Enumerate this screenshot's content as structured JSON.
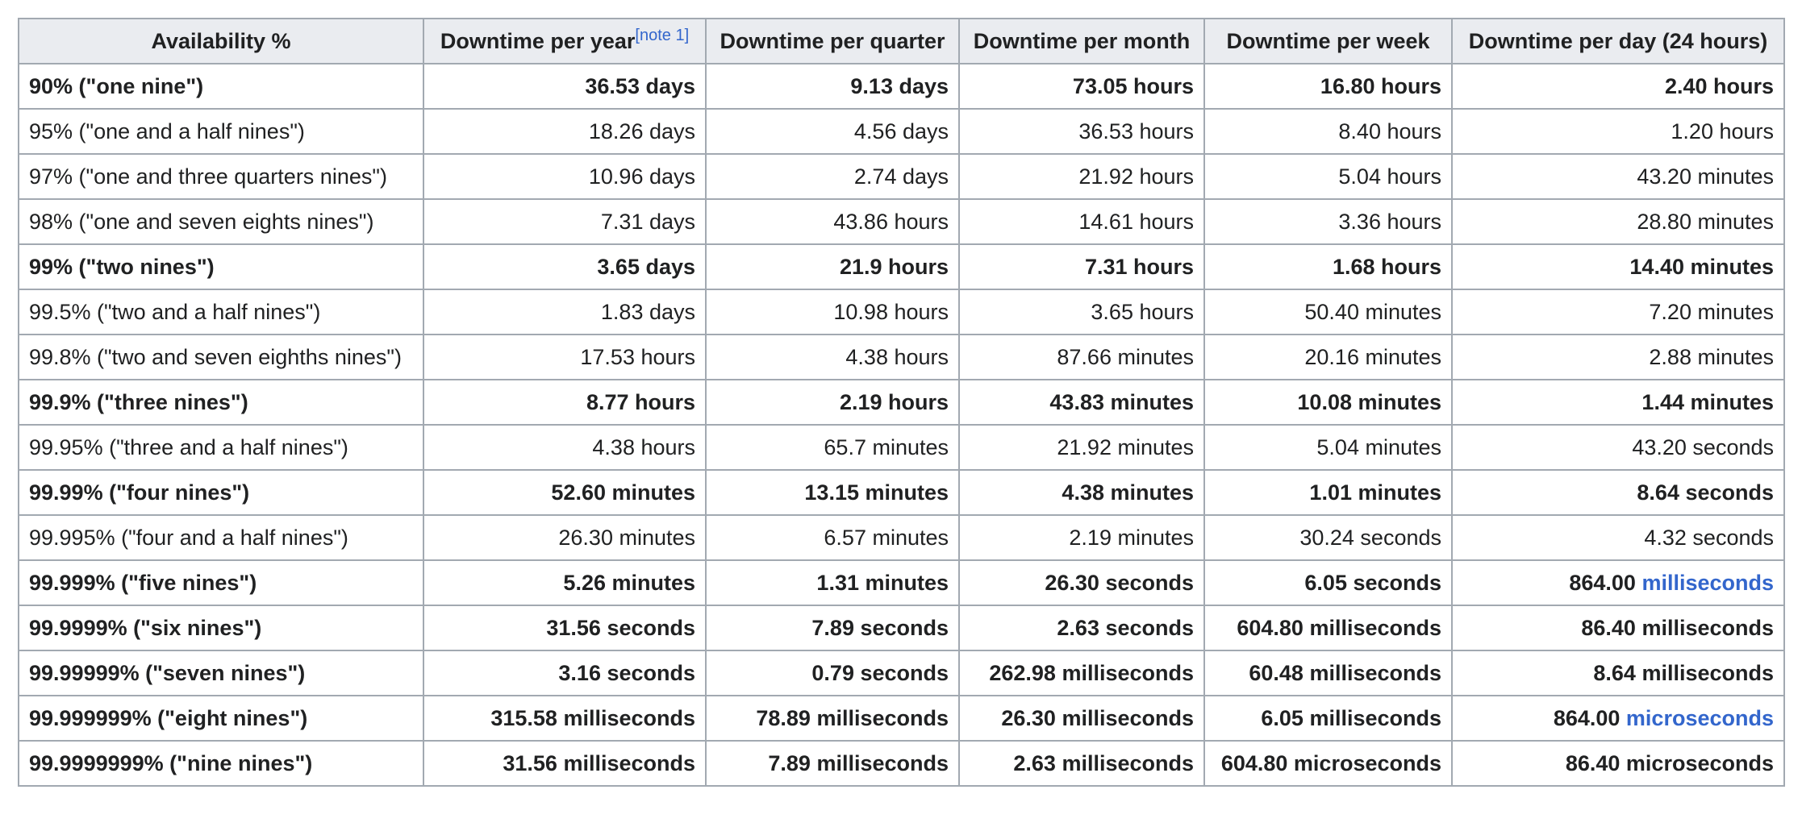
{
  "table": {
    "headers": [
      "Availability %",
      "Downtime per year",
      "Downtime per quarter",
      "Downtime per month",
      "Downtime per week",
      "Downtime per day (24 hours)"
    ],
    "year_note": "[note 1]",
    "link_color": "#3366cc",
    "rows": [
      {
        "bold": true,
        "cells": [
          "90% (\"one nine\")",
          "36.53 days",
          "9.13 days",
          "73.05 hours",
          "16.80 hours",
          "2.40 hours"
        ]
      },
      {
        "bold": false,
        "cells": [
          "95% (\"one and a half nines\")",
          "18.26 days",
          "4.56 days",
          "36.53 hours",
          "8.40 hours",
          "1.20 hours"
        ]
      },
      {
        "bold": false,
        "cells": [
          "97% (\"one and three quarters nines\")",
          "10.96 days",
          "2.74 days",
          "21.92 hours",
          "5.04 hours",
          "43.20 minutes"
        ]
      },
      {
        "bold": false,
        "cells": [
          "98% (\"one and seven eights nines\")",
          "7.31 days",
          "43.86 hours",
          "14.61 hours",
          "3.36 hours",
          "28.80 minutes"
        ]
      },
      {
        "bold": true,
        "cells": [
          "99% (\"two nines\")",
          "3.65 days",
          "21.9 hours",
          "7.31 hours",
          "1.68 hours",
          "14.40 minutes"
        ]
      },
      {
        "bold": false,
        "cells": [
          "99.5% (\"two and a half nines\")",
          "1.83 days",
          "10.98 hours",
          "3.65 hours",
          "50.40 minutes",
          "7.20 minutes"
        ]
      },
      {
        "bold": false,
        "cells": [
          "99.8% (\"two and seven eighths nines\")",
          "17.53 hours",
          "4.38 hours",
          "87.66 minutes",
          "20.16 minutes",
          "2.88 minutes"
        ]
      },
      {
        "bold": true,
        "cells": [
          "99.9% (\"three nines\")",
          "8.77 hours",
          "2.19 hours",
          "43.83 minutes",
          "10.08 minutes",
          "1.44 minutes"
        ]
      },
      {
        "bold": false,
        "cells": [
          "99.95% (\"three and a half nines\")",
          "4.38 hours",
          "65.7 minutes",
          "21.92 minutes",
          "5.04 minutes",
          "43.20 seconds"
        ]
      },
      {
        "bold": true,
        "cells": [
          "99.99% (\"four nines\")",
          "52.60 minutes",
          "13.15 minutes",
          "4.38 minutes",
          "1.01 minutes",
          "8.64 seconds"
        ]
      },
      {
        "bold": false,
        "cells": [
          "99.995% (\"four and a half nines\")",
          "26.30 minutes",
          "6.57 minutes",
          "2.19 minutes",
          "30.24 seconds",
          "4.32 seconds"
        ]
      },
      {
        "bold": true,
        "cells": [
          "99.999% (\"five nines\")",
          "5.26 minutes",
          "1.31 minutes",
          "26.30 seconds",
          "6.05 seconds",
          "864.00 milliseconds"
        ],
        "day_link": {
          "prefix": "864.00 ",
          "link": "milliseconds"
        }
      },
      {
        "bold": true,
        "cells": [
          "99.9999% (\"six nines\")",
          "31.56 seconds",
          "7.89 seconds",
          "2.63 seconds",
          "604.80 milliseconds",
          "86.40 milliseconds"
        ]
      },
      {
        "bold": true,
        "cells": [
          "99.99999% (\"seven nines\")",
          "3.16 seconds",
          "0.79 seconds",
          "262.98 milliseconds",
          "60.48 milliseconds",
          "8.64 milliseconds"
        ]
      },
      {
        "bold": true,
        "cells": [
          "99.999999% (\"eight nines\")",
          "315.58 milliseconds",
          "78.89 milliseconds",
          "26.30 milliseconds",
          "6.05 milliseconds",
          "864.00 microseconds"
        ],
        "day_link": {
          "prefix": "864.00 ",
          "link": "microseconds"
        }
      },
      {
        "bold": true,
        "cells": [
          "99.9999999% (\"nine nines\")",
          "31.56 milliseconds",
          "7.89 milliseconds",
          "2.63 milliseconds",
          "604.80 microseconds",
          "86.40 microseconds"
        ]
      }
    ]
  }
}
